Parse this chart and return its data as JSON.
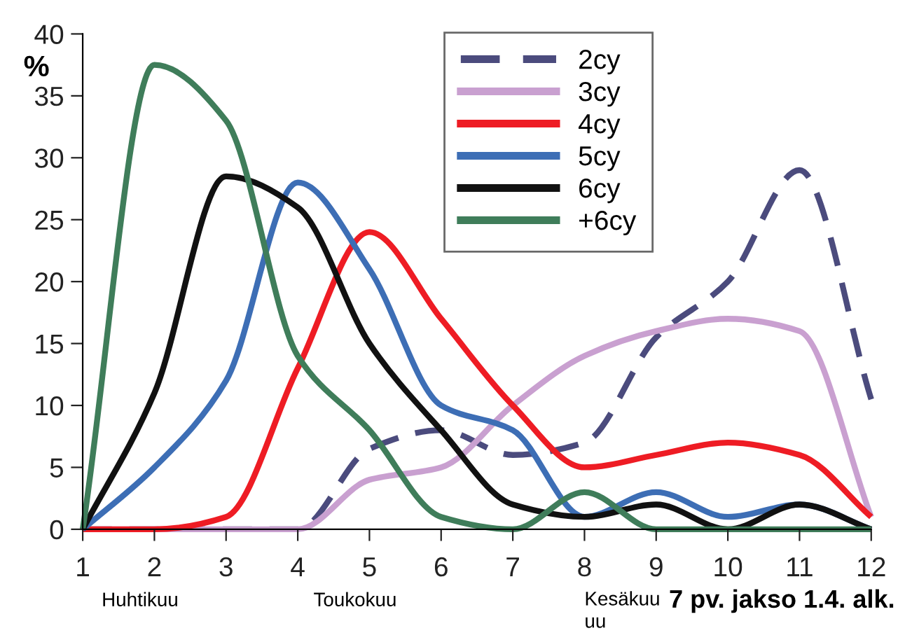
{
  "chart_data": {
    "type": "line",
    "ylabel": "%",
    "xlabel": "7 pv. jakso 1.4. alk.",
    "x": [
      1,
      2,
      3,
      4,
      5,
      6,
      7,
      8,
      9,
      10,
      11,
      12
    ],
    "xlim": [
      1,
      12
    ],
    "xticks": [
      1,
      2,
      3,
      4,
      5,
      6,
      7,
      8,
      9,
      10,
      11,
      12
    ],
    "ylim": [
      0,
      40
    ],
    "yticks": [
      0,
      5,
      10,
      15,
      20,
      25,
      30,
      35,
      40
    ],
    "grid": false,
    "legend": "top right",
    "marker": "none",
    "series": [
      {
        "name": "2cy",
        "color": "#4b4b7d",
        "line_style": "dashed",
        "values": [
          0,
          0,
          0,
          0,
          6.5,
          8,
          6,
          7,
          15.5,
          20,
          29,
          10.5
        ]
      },
      {
        "name": "3cy",
        "color": "#c9a0d0",
        "line_style": "solid",
        "values": [
          0,
          0,
          0,
          0,
          4,
          5,
          10,
          14,
          16,
          17,
          16,
          1
        ]
      },
      {
        "name": "4cy",
        "color": "#ee1c24",
        "line_style": "solid",
        "values": [
          0,
          0,
          1,
          13,
          24,
          17,
          10,
          5,
          6,
          7,
          6,
          1
        ]
      },
      {
        "name": "5cy",
        "color": "#3d6eb5",
        "line_style": "solid",
        "values": [
          0,
          5,
          12,
          28,
          21,
          10,
          8,
          1,
          3,
          1,
          2,
          0
        ]
      },
      {
        "name": "6cy",
        "color": "#111111",
        "line_style": "solid",
        "values": [
          0,
          11,
          28.5,
          26,
          15,
          8,
          2,
          1,
          2,
          0,
          2,
          0
        ]
      },
      {
        "name": "+6cy",
        "color": "#3f7d5a",
        "line_style": "solid",
        "values": [
          0,
          37.5,
          33,
          14,
          8,
          1,
          0,
          3,
          0,
          0,
          0,
          0
        ]
      }
    ],
    "annotations": [
      "Huhtikuu",
      "Toukokuu",
      "Kesäkuu\nuu"
    ]
  }
}
